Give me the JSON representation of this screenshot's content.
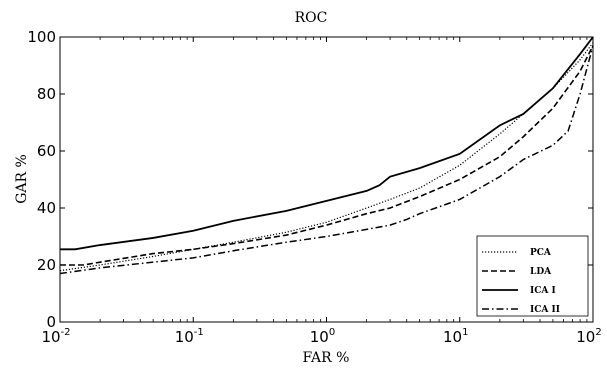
{
  "chart_data": {
    "type": "line",
    "title": "ROC",
    "xlabel": "FAR %",
    "ylabel": "GAR %",
    "xscale": "log",
    "xlim": [
      0.01,
      100
    ],
    "ylim": [
      0,
      100
    ],
    "x_ticks": [
      {
        "base": "10",
        "exp": "-2",
        "value": 0.01
      },
      {
        "base": "10",
        "exp": "-1",
        "value": 0.1
      },
      {
        "base": "10",
        "exp": "0",
        "value": 1
      },
      {
        "base": "10",
        "exp": "1",
        "value": 10
      },
      {
        "base": "10",
        "exp": "2",
        "value": 100
      }
    ],
    "y_ticks": [
      0,
      20,
      40,
      60,
      80,
      100
    ],
    "grid": false,
    "legend_position": "bottom-right",
    "series": [
      {
        "name": "PCA",
        "style": "dotted",
        "color": "#000000",
        "points": [
          [
            0.01,
            18
          ],
          [
            0.02,
            20
          ],
          [
            0.05,
            23
          ],
          [
            0.1,
            25.5
          ],
          [
            0.2,
            28
          ],
          [
            0.5,
            31.5
          ],
          [
            1,
            35
          ],
          [
            2,
            40
          ],
          [
            3,
            43
          ],
          [
            5,
            47
          ],
          [
            10,
            55
          ],
          [
            20,
            66
          ],
          [
            50,
            82
          ],
          [
            80,
            92
          ],
          [
            100,
            98
          ]
        ]
      },
      {
        "name": "LDA",
        "style": "dashed",
        "color": "#000000",
        "points": [
          [
            0.01,
            20
          ],
          [
            0.015,
            20
          ],
          [
            0.02,
            21
          ],
          [
            0.05,
            24
          ],
          [
            0.1,
            25.5
          ],
          [
            0.2,
            27.5
          ],
          [
            0.5,
            30.5
          ],
          [
            1,
            34
          ],
          [
            2,
            38
          ],
          [
            3,
            40
          ],
          [
            5,
            44
          ],
          [
            10,
            50
          ],
          [
            20,
            58
          ],
          [
            30,
            65
          ],
          [
            50,
            75
          ],
          [
            80,
            88
          ],
          [
            100,
            97
          ]
        ]
      },
      {
        "name": "ICA I",
        "style": "solid",
        "color": "#000000",
        "points": [
          [
            0.01,
            25.5
          ],
          [
            0.013,
            25.5
          ],
          [
            0.02,
            27
          ],
          [
            0.05,
            29.5
          ],
          [
            0.1,
            32
          ],
          [
            0.2,
            35.5
          ],
          [
            0.5,
            39
          ],
          [
            1,
            42.5
          ],
          [
            2,
            46
          ],
          [
            2.5,
            48
          ],
          [
            3,
            51
          ],
          [
            5,
            54
          ],
          [
            10,
            59
          ],
          [
            20,
            69
          ],
          [
            30,
            73
          ],
          [
            50,
            82
          ],
          [
            80,
            94
          ],
          [
            100,
            100
          ]
        ]
      },
      {
        "name": "ICA II",
        "style": "dashdot",
        "color": "#000000",
        "points": [
          [
            0.01,
            17
          ],
          [
            0.02,
            19
          ],
          [
            0.05,
            21
          ],
          [
            0.1,
            22.5
          ],
          [
            0.2,
            25
          ],
          [
            0.5,
            28
          ],
          [
            1,
            30
          ],
          [
            2,
            32.5
          ],
          [
            3,
            34
          ],
          [
            4,
            36
          ],
          [
            5,
            38
          ],
          [
            10,
            43
          ],
          [
            20,
            51
          ],
          [
            30,
            57
          ],
          [
            50,
            62
          ],
          [
            65,
            67
          ],
          [
            80,
            80
          ],
          [
            100,
            97
          ]
        ]
      }
    ]
  }
}
